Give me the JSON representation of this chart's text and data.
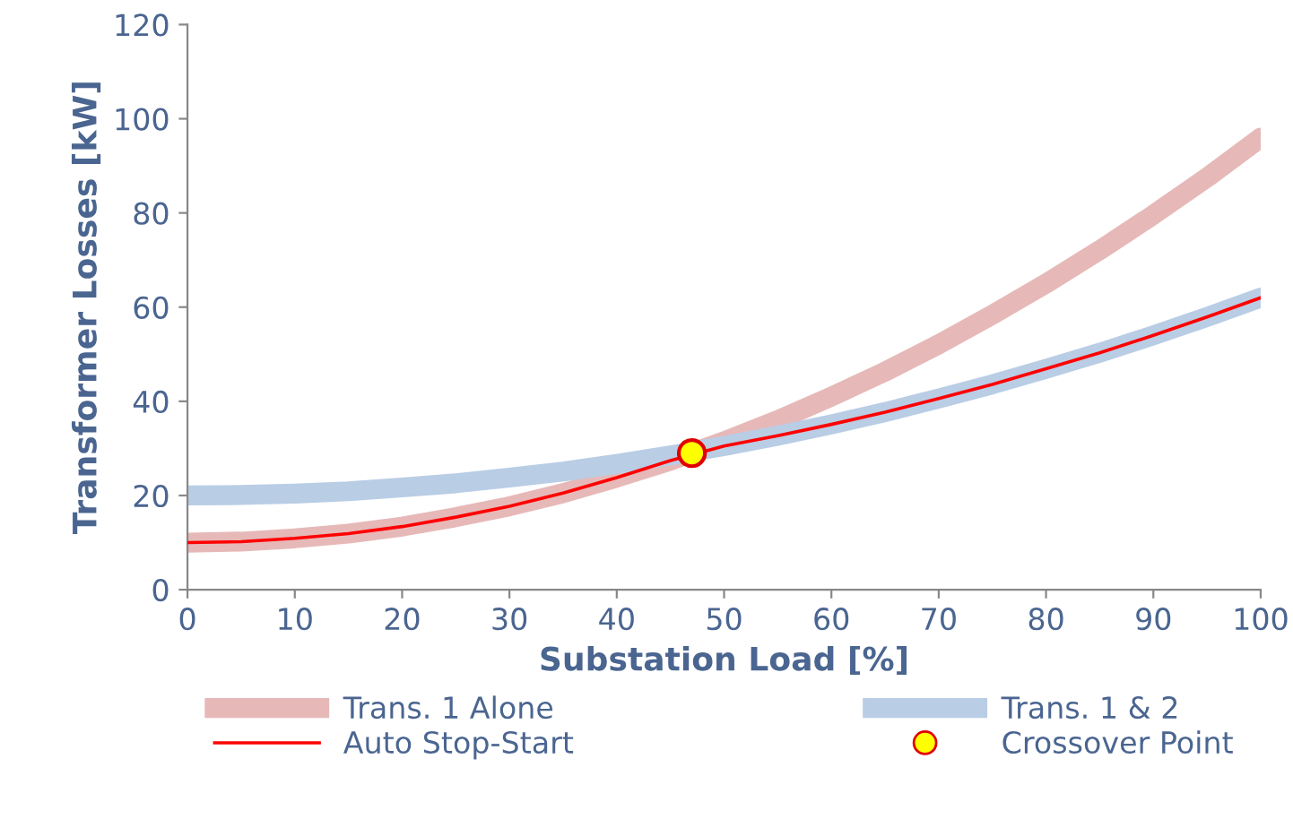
{
  "chart_data": {
    "type": "line",
    "xlabel": "Substation Load [%]",
    "ylabel": "Transformer Losses [kW]",
    "xlim": [
      0,
      100
    ],
    "xticks": [
      0,
      10,
      20,
      30,
      40,
      50,
      60,
      70,
      80,
      90,
      100
    ],
    "ylim": [
      0,
      120
    ],
    "yticks": [
      0,
      20,
      40,
      60,
      80,
      100,
      120
    ],
    "grid": false,
    "legend": "bottom",
    "marker": "none",
    "line_style": "solid",
    "x": [
      0,
      5,
      10,
      15,
      20,
      25,
      30,
      35,
      40,
      45,
      50,
      55,
      60,
      65,
      70,
      75,
      80,
      85,
      90,
      95,
      100
    ],
    "series": [
      {
        "name": "Trans. 1 Alone",
        "color": "#e6b9b8",
        "values": [
          10,
          10.2,
          10.9,
          11.9,
          13.4,
          15.4,
          17.7,
          20.5,
          23.8,
          27.4,
          31.5,
          36,
          41,
          46.3,
          52.1,
          58.4,
          65,
          72.1,
          79.6,
          87.5,
          96
        ]
      },
      {
        "name": "Trans. 1 & 2",
        "color": "#b9cde5",
        "values": [
          20,
          20.1,
          20.4,
          20.9,
          21.7,
          22.6,
          23.8,
          25.1,
          26.7,
          28.5,
          30.5,
          32.7,
          35.1,
          37.7,
          40.6,
          43.6,
          46.9,
          50.3,
          54,
          57.9,
          62
        ]
      },
      {
        "name": "Auto Stop-Start",
        "color": "#ff0000",
        "x": [
          0,
          5,
          10,
          15,
          20,
          25,
          30,
          35,
          40,
          45,
          50,
          55,
          60,
          65,
          70,
          75,
          80,
          85,
          90,
          95,
          100
        ],
        "values": [
          10,
          10.2,
          10.9,
          11.9,
          13.4,
          15.4,
          17.7,
          20.5,
          23.8,
          27.4,
          30.5,
          32.7,
          35.1,
          37.7,
          40.6,
          43.6,
          46.9,
          50.3,
          54,
          57.9,
          62
        ]
      },
      {
        "name": "Crossover Point",
        "type": "scatter",
        "marker": "circle",
        "color": "#ffff00",
        "x": [
          47
        ],
        "values": [
          29
        ]
      }
    ]
  }
}
